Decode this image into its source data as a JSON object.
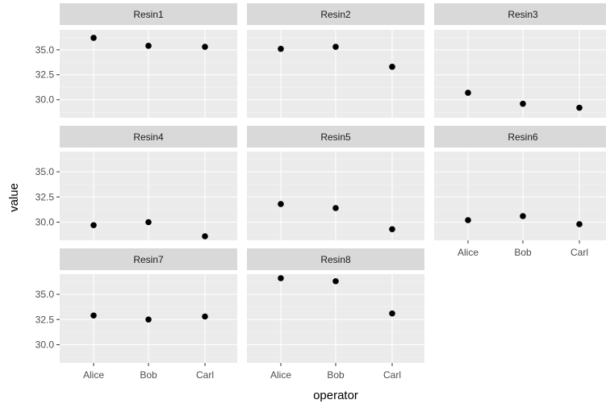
{
  "chart_data": {
    "type": "scatter",
    "facet_type": "wrap",
    "facet_columns": 3,
    "xlabel": "operator",
    "ylabel": "value",
    "categories": [
      "Alice",
      "Bob",
      "Carl"
    ],
    "ylim": [
      28.2,
      37.0
    ],
    "yticks": [
      30.0,
      32.5,
      35.0
    ],
    "ytick_labels": [
      "30.0",
      "32.5",
      "35.0"
    ],
    "grid": true,
    "point_color": "#000000",
    "panels": [
      {
        "name": "Resin1",
        "values": [
          36.2,
          35.4,
          35.3
        ]
      },
      {
        "name": "Resin2",
        "values": [
          35.1,
          35.3,
          33.3
        ]
      },
      {
        "name": "Resin3",
        "values": [
          30.7,
          29.6,
          29.2
        ]
      },
      {
        "name": "Resin4",
        "values": [
          29.7,
          30.0,
          28.6
        ]
      },
      {
        "name": "Resin5",
        "values": [
          31.8,
          31.4,
          29.3
        ]
      },
      {
        "name": "Resin6",
        "values": [
          30.2,
          30.6,
          29.8
        ]
      },
      {
        "name": "Resin7",
        "values": [
          32.9,
          32.5,
          32.8
        ]
      },
      {
        "name": "Resin8",
        "values": [
          36.6,
          36.3,
          33.1
        ]
      }
    ]
  }
}
